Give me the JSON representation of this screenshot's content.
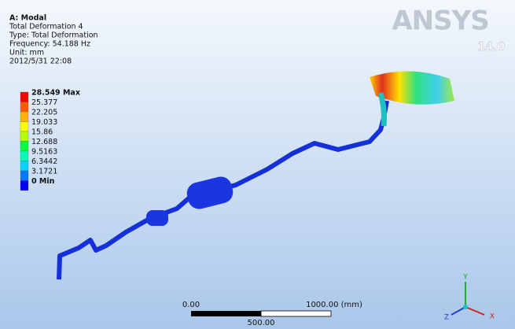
{
  "header": {
    "analysis": "A: Modal",
    "title": "Total Deformation 4",
    "type": "Type: Total Deformation",
    "frequency": "Frequency: 54.188 Hz",
    "unit": "Unit: mm",
    "date": "2012/5/31 22:08"
  },
  "legend": {
    "entries": [
      "28.549 Max",
      "25.377",
      "22.205",
      "19.033",
      "15.86",
      "12.688",
      "9.5163",
      "6.3442",
      "3.1721",
      "0 Min"
    ]
  },
  "logo": {
    "brand": "ANSYS",
    "version": "14.0"
  },
  "scale_bar": {
    "start": "0.00",
    "end": "1000.00 (mm)",
    "middle": "500.00"
  },
  "triad": {
    "y": "Y",
    "z": "Z",
    "x": "X"
  }
}
